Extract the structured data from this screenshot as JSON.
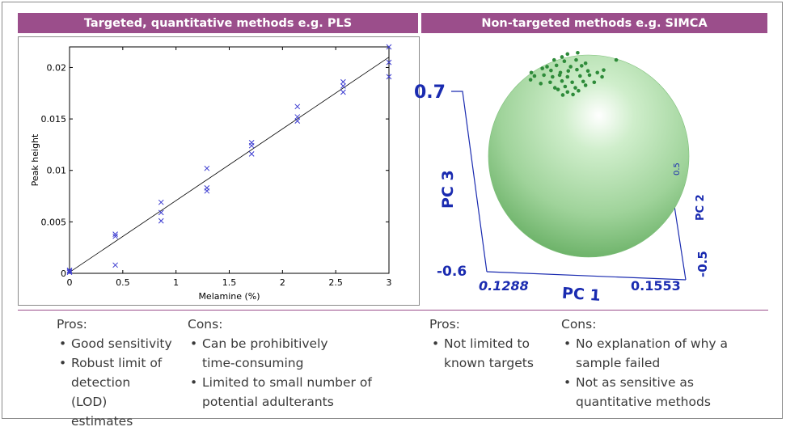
{
  "banners": {
    "left": "Targeted, quantitative methods e.g. PLS",
    "right": "Non-targeted methods e.g. SIMCA"
  },
  "chart_data": [
    {
      "type": "scatter",
      "xlabel": "Melamine (%)",
      "ylabel": "Peak height",
      "xlim": [
        0,
        3
      ],
      "ylim": [
        0,
        0.022
      ],
      "x_ticks": [
        "0",
        "0.5",
        "1",
        "1.5",
        "2",
        "2.5",
        "3"
      ],
      "y_ticks": [
        "0",
        "0.005",
        "0.01",
        "0.015",
        "0.02"
      ],
      "grid": false,
      "marker": "x",
      "color": "#3b3bd0",
      "points": [
        {
          "x": 0,
          "y": 0.0001
        },
        {
          "x": 0,
          "y": 0.0002
        },
        {
          "x": 0,
          "y": 0.0003
        },
        {
          "x": 0.43,
          "y": 0.0036
        },
        {
          "x": 0.43,
          "y": 0.0038
        },
        {
          "x": 0.43,
          "y": 0.0008
        },
        {
          "x": 0.86,
          "y": 0.0069
        },
        {
          "x": 0.86,
          "y": 0.0059
        },
        {
          "x": 0.86,
          "y": 0.0051
        },
        {
          "x": 1.29,
          "y": 0.0102
        },
        {
          "x": 1.29,
          "y": 0.0083
        },
        {
          "x": 1.29,
          "y": 0.008
        },
        {
          "x": 1.71,
          "y": 0.0127
        },
        {
          "x": 1.71,
          "y": 0.0124
        },
        {
          "x": 1.71,
          "y": 0.0116
        },
        {
          "x": 2.14,
          "y": 0.0162
        },
        {
          "x": 2.14,
          "y": 0.0152
        },
        {
          "x": 2.14,
          "y": 0.0148
        },
        {
          "x": 2.57,
          "y": 0.0186
        },
        {
          "x": 2.57,
          "y": 0.0182
        },
        {
          "x": 2.57,
          "y": 0.0176
        },
        {
          "x": 3.0,
          "y": 0.022
        },
        {
          "x": 3.0,
          "y": 0.0205
        },
        {
          "x": 3.0,
          "y": 0.0191
        }
      ],
      "fit_line": {
        "x": [
          0,
          3.0
        ],
        "y": [
          0.0001,
          0.021
        ]
      }
    },
    {
      "type": "scatter",
      "xlabel": "PC 1",
      "ylabel": "PC 3",
      "zlabel": "PC 2",
      "x_ticks": [
        "0.1288",
        "0.1553"
      ],
      "y_ticks": [
        "-0.6",
        "0.7"
      ],
      "z_ticks": [
        "-0.5",
        "0.5"
      ],
      "axis_color": "#1a2bb0",
      "sphere_color": "#9fd39a",
      "point_color": "#2e8b3a",
      "points": [
        {
          "x": 0.715,
          "y": 0.135
        },
        {
          "x": 0.722,
          "y": 0.128
        },
        {
          "x": 0.735,
          "y": 0.125
        },
        {
          "x": 0.705,
          "y": 0.142
        },
        {
          "x": 0.718,
          "y": 0.145
        },
        {
          "x": 0.733,
          "y": 0.142
        },
        {
          "x": 0.745,
          "y": 0.15
        },
        {
          "x": 0.696,
          "y": 0.158
        },
        {
          "x": 0.708,
          "y": 0.155
        },
        {
          "x": 0.726,
          "y": 0.158
        },
        {
          "x": 0.74,
          "y": 0.156
        },
        {
          "x": 0.69,
          "y": 0.162
        },
        {
          "x": 0.701,
          "y": 0.167
        },
        {
          "x": 0.713,
          "y": 0.172
        },
        {
          "x": 0.723,
          "y": 0.168
        },
        {
          "x": 0.734,
          "y": 0.165
        },
        {
          "x": 0.748,
          "y": 0.168
        },
        {
          "x": 0.76,
          "y": 0.172
        },
        {
          "x": 0.68,
          "y": 0.18
        },
        {
          "x": 0.692,
          "y": 0.178
        },
        {
          "x": 0.703,
          "y": 0.182
        },
        {
          "x": 0.712,
          "y": 0.178
        },
        {
          "x": 0.722,
          "y": 0.182
        },
        {
          "x": 0.738,
          "y": 0.18
        },
        {
          "x": 0.75,
          "y": 0.178
        },
        {
          "x": 0.766,
          "y": 0.182
        },
        {
          "x": 0.675,
          "y": 0.189
        },
        {
          "x": 0.7,
          "y": 0.195
        },
        {
          "x": 0.715,
          "y": 0.192
        },
        {
          "x": 0.728,
          "y": 0.195
        },
        {
          "x": 0.742,
          "y": 0.193
        },
        {
          "x": 0.756,
          "y": 0.195
        },
        {
          "x": 0.688,
          "y": 0.198
        },
        {
          "x": 0.706,
          "y": 0.208
        },
        {
          "x": 0.719,
          "y": 0.205
        },
        {
          "x": 0.732,
          "y": 0.208
        },
        {
          "x": 0.745,
          "y": 0.202
        },
        {
          "x": 0.71,
          "y": 0.212
        },
        {
          "x": 0.722,
          "y": 0.218
        },
        {
          "x": 0.736,
          "y": 0.215
        },
        {
          "x": 0.716,
          "y": 0.225
        },
        {
          "x": 0.729,
          "y": 0.224
        },
        {
          "x": 0.784,
          "y": 0.142
        },
        {
          "x": 0.768,
          "y": 0.166
        },
        {
          "x": 0.676,
          "y": 0.172
        }
      ]
    }
  ],
  "columns": [
    {
      "heading": "Pros:",
      "items": [
        "Good sensitivity",
        "Robust limit of detection (LOD) estimates"
      ]
    },
    {
      "heading": "Cons:",
      "items": [
        "Can be prohibitively time-consuming",
        "Limited to small number of potential adulterants"
      ]
    },
    {
      "heading": "Pros:",
      "items": [
        "Not limited to known targets"
      ]
    },
    {
      "heading": "Cons:",
      "items": [
        "No explanation of why a sample failed",
        "Not as sensitive as quantitative methods"
      ]
    }
  ]
}
